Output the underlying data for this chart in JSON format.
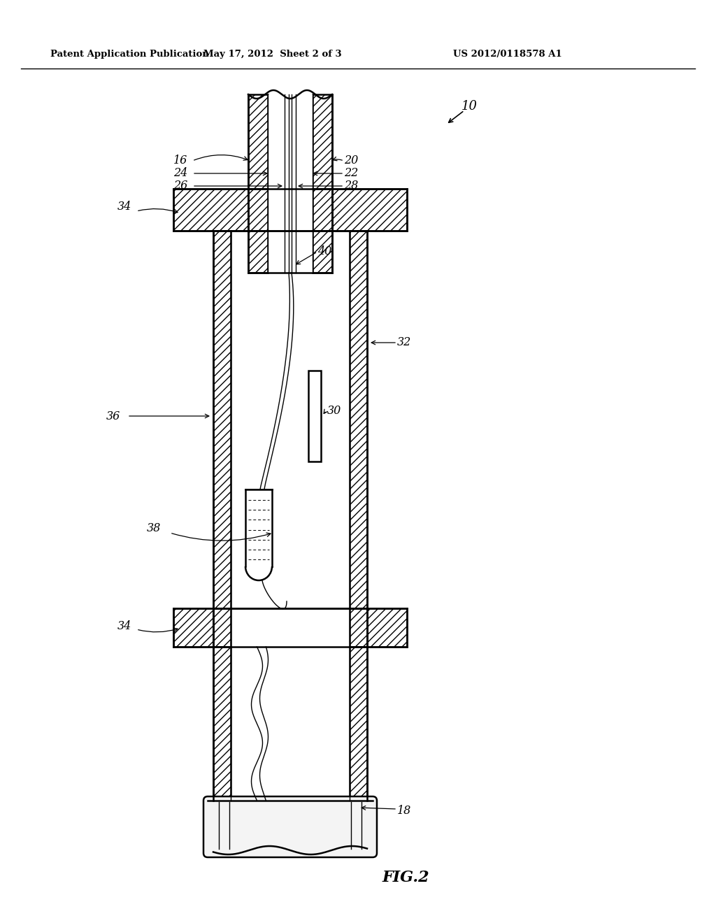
{
  "header_left": "Patent Application Publication",
  "header_center": "May 17, 2012  Sheet 2 of 3",
  "header_right": "US 2012/0118578 A1",
  "fig_label": "FIG.2",
  "bg": "#ffffff",
  "lc": "#000000"
}
